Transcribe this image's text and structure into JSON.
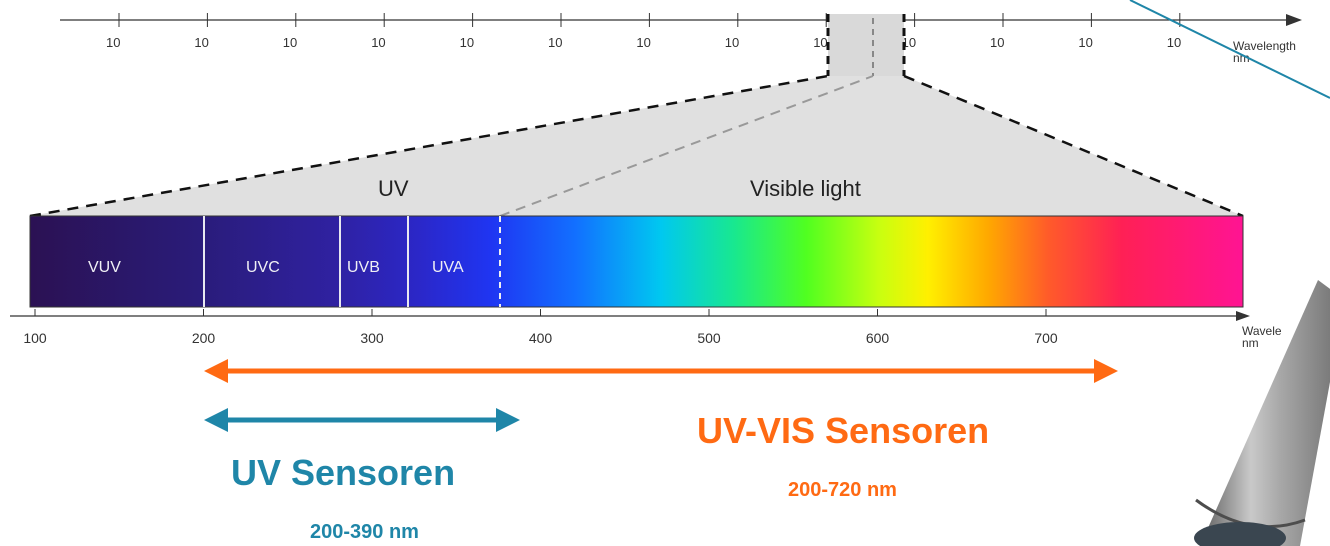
{
  "top_scale": {
    "tick_labels": [
      "10",
      "10",
      "10",
      "10",
      "10",
      "10",
      "10",
      "10",
      "10",
      "10",
      "10",
      "10",
      "10"
    ],
    "unit_label_1": "Wavelength",
    "unit_label_2": "nm"
  },
  "zoom": {
    "uv_label": "UV",
    "visible_label": "Visible light"
  },
  "spectrum": {
    "bands": [
      "VUV",
      "UVC",
      "UVB",
      "UVA"
    ]
  },
  "bottom_scale": {
    "tick_labels": [
      "100",
      "200",
      "300",
      "400",
      "500",
      "600",
      "700"
    ],
    "unit_label_1": "Wavele",
    "unit_label_2": "nm"
  },
  "uvvis_sensor": {
    "title": "UV-VIS Sensoren",
    "range": "200-720 nm",
    "color": "#ff6a13"
  },
  "uv_sensor": {
    "title": "UV Sensoren",
    "range": "200-390 nm",
    "color": "#1f86a8"
  },
  "probe": {
    "color": "#8c8c8c"
  }
}
